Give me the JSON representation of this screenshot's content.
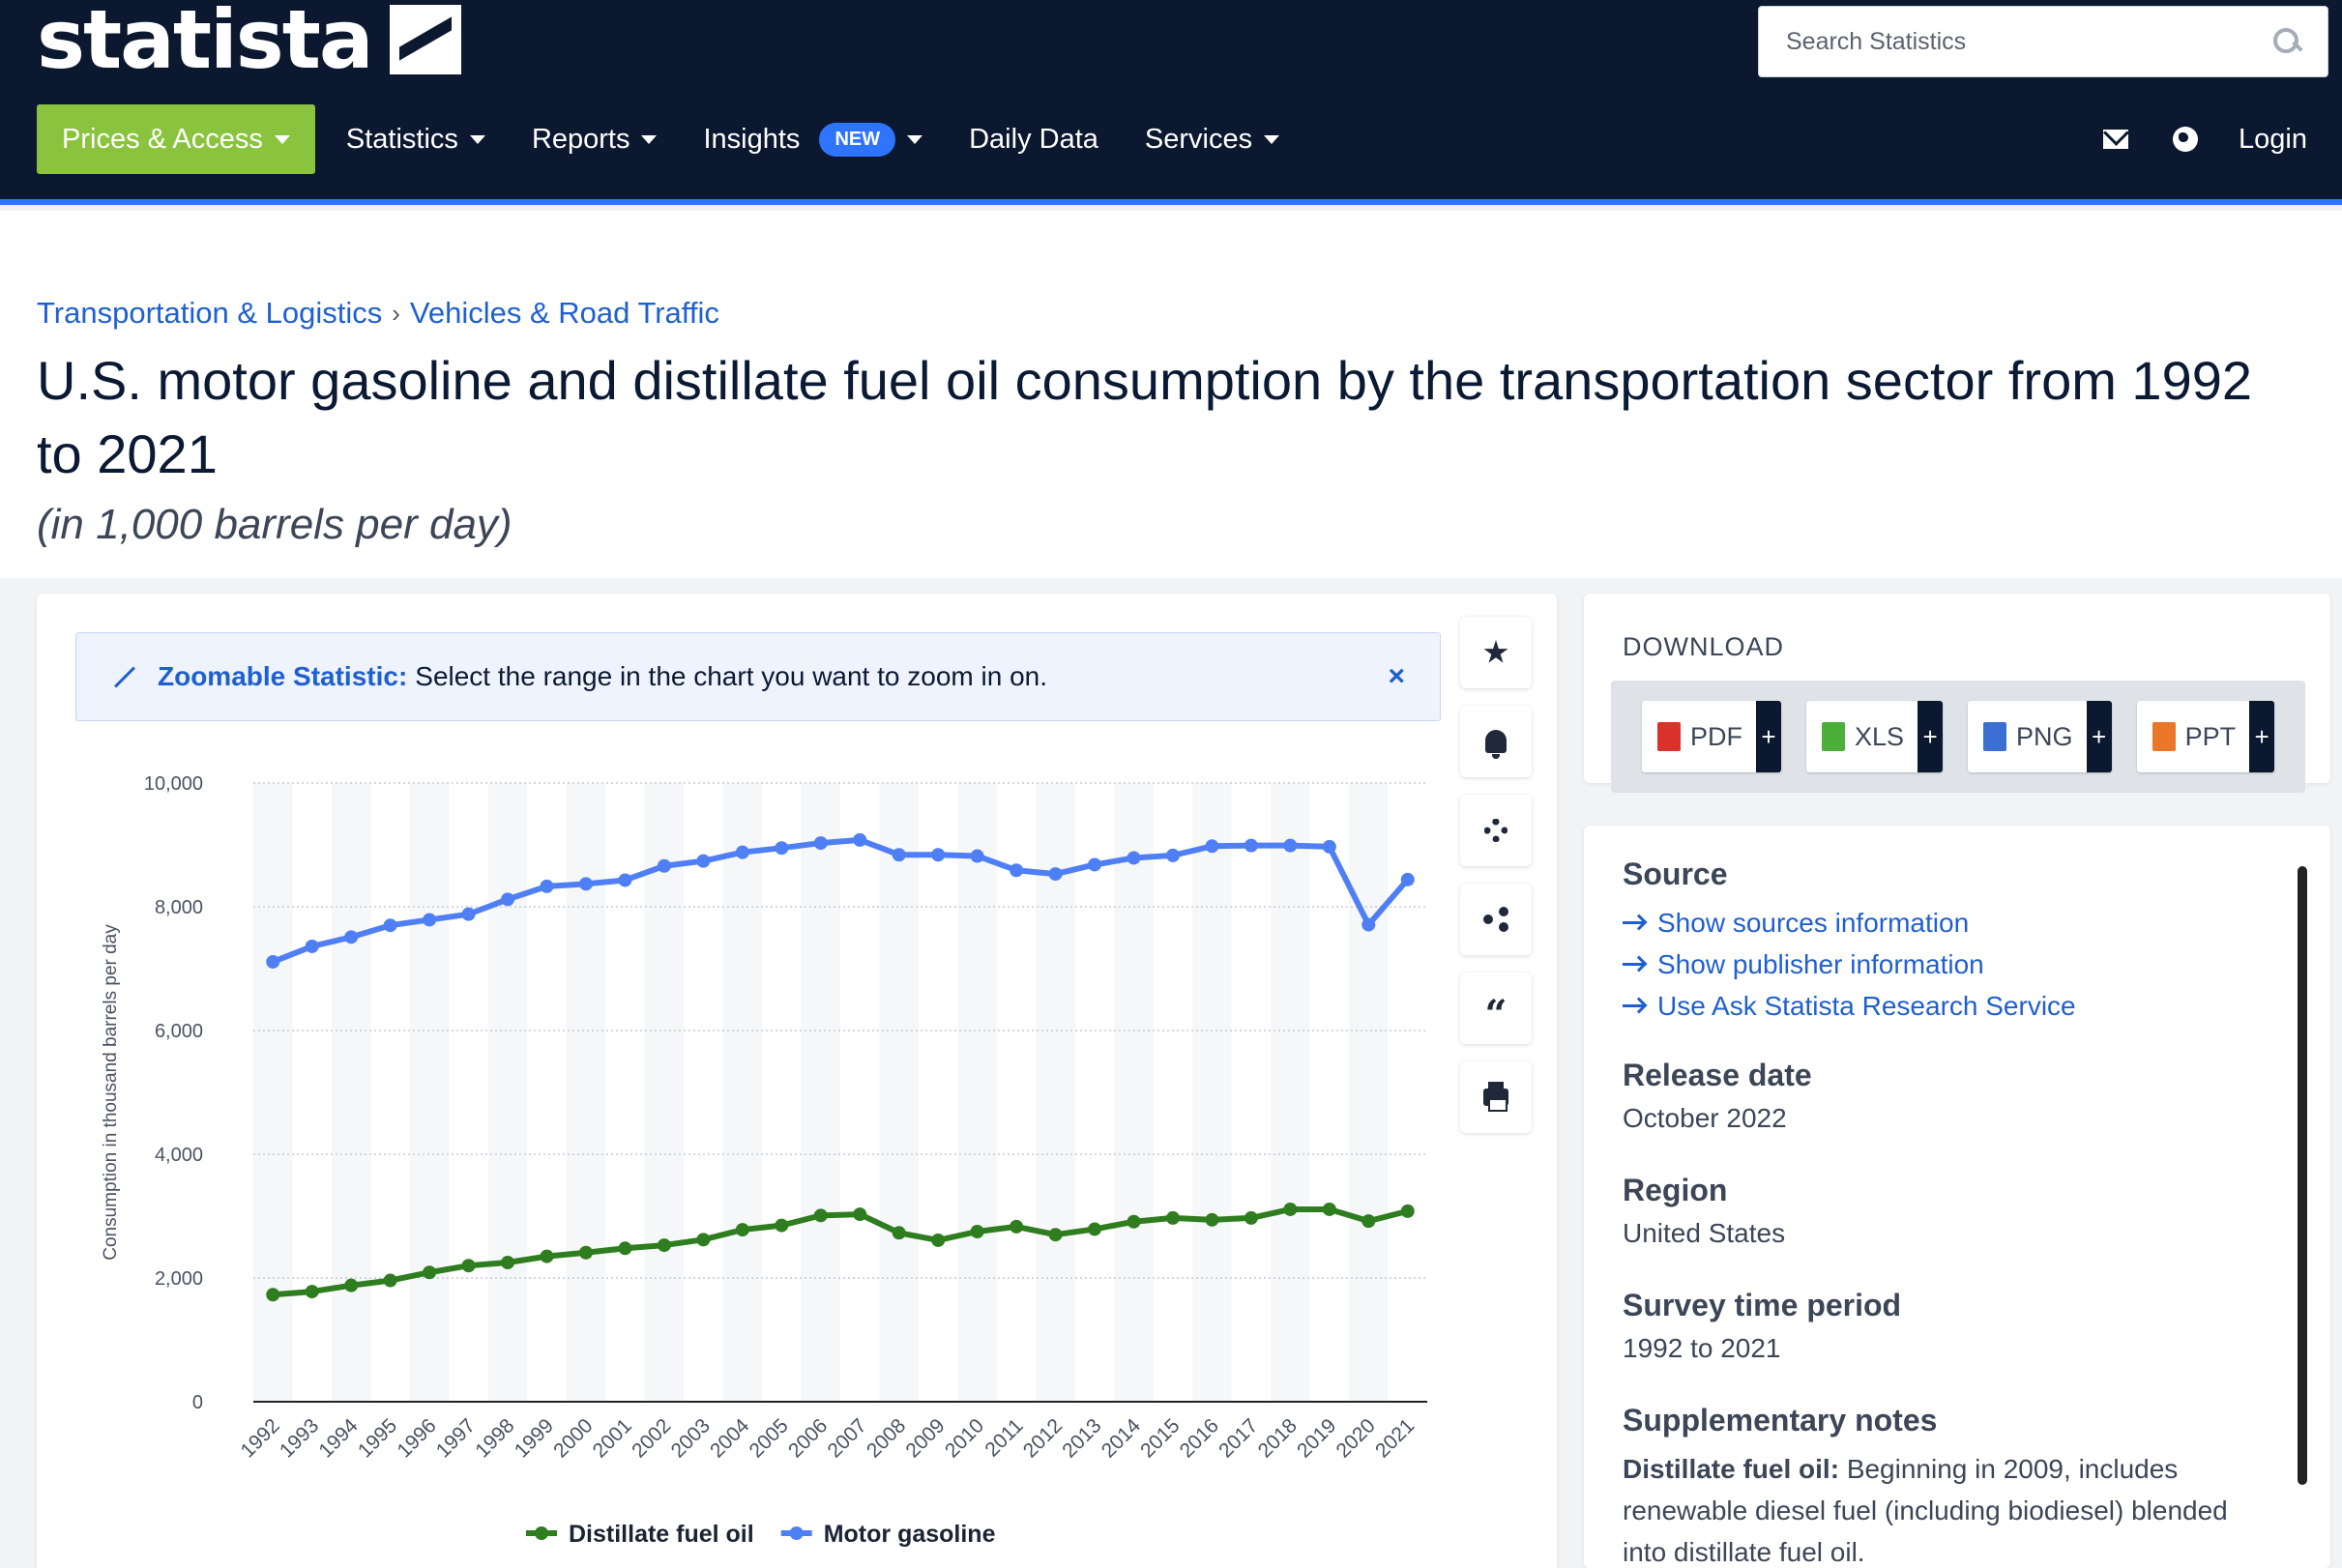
{
  "header": {
    "logo_text": "statista",
    "search_placeholder": "Search Statistics",
    "nav": [
      {
        "label": "Prices & Access"
      },
      {
        "label": "Statistics"
      },
      {
        "label": "Reports"
      },
      {
        "label": "Insights",
        "badge": "NEW"
      },
      {
        "label": "Daily Data"
      },
      {
        "label": "Services"
      }
    ],
    "login_label": "Login"
  },
  "breadcrumb": [
    "Transportation & Logistics",
    "Vehicles & Road Traffic"
  ],
  "page": {
    "title": "U.S. motor gasoline and distillate fuel oil consumption by the transportation sector from 1992 to 2021",
    "subtitle": "(in 1,000 barrels per day)"
  },
  "zoom_banner": {
    "lead": "Zoomable Statistic:",
    "text": "Select the range in the chart you want to zoom in on.",
    "close": "×"
  },
  "tools": [
    "star-icon",
    "bell-icon",
    "gear-icon",
    "share-icon",
    "quote-icon",
    "print-icon"
  ],
  "download": {
    "title": "DOWNLOAD",
    "buttons": [
      {
        "label": "PDF",
        "color": "#d9322b"
      },
      {
        "label": "XLS",
        "color": "#4caf3a"
      },
      {
        "label": "PNG",
        "color": "#3b6fd1"
      },
      {
        "label": "PPT",
        "color": "#e8772a"
      }
    ],
    "plus": "+"
  },
  "info": {
    "source_title": "Source",
    "source_links": [
      "Show sources information",
      "Show publisher information",
      "Use Ask Statista Research Service"
    ],
    "release_title": "Release date",
    "release_value": "October 2022",
    "region_title": "Region",
    "region_value": "United States",
    "survey_title": "Survey time period",
    "survey_value": "1992 to 2021",
    "notes_title": "Supplementary notes",
    "notes_lead": "Distillate fuel oil:",
    "notes_text": "Beginning in 2009, includes renewable diesel fuel (including biodiesel) blended into distillate fuel oil."
  },
  "chart_data": {
    "type": "line",
    "ylabel": "Consumption in thousand barrels per day",
    "ylim": [
      0,
      10000
    ],
    "yticks": [
      "0",
      "2,000",
      "4,000",
      "6,000",
      "8,000",
      "10,000"
    ],
    "x": [
      "1992",
      "1993",
      "1994",
      "1995",
      "1996",
      "1997",
      "1998",
      "1999",
      "2000",
      "2001",
      "2002",
      "2003",
      "2004",
      "2005",
      "2006",
      "2007",
      "2008",
      "2009",
      "2010",
      "2011",
      "2012",
      "2013",
      "2014",
      "2015",
      "2016",
      "2017",
      "2018",
      "2019",
      "2020",
      "2021"
    ],
    "series": [
      {
        "name": "Distillate fuel oil",
        "color": "#2e7d1f",
        "values": [
          1730,
          1780,
          1880,
          1960,
          2090,
          2200,
          2250,
          2350,
          2410,
          2480,
          2530,
          2620,
          2780,
          2850,
          3010,
          3030,
          2730,
          2610,
          2750,
          2830,
          2700,
          2790,
          2910,
          2970,
          2940,
          2970,
          3110,
          3110,
          2920,
          3080
        ]
      },
      {
        "name": "Motor gasoline",
        "color": "#4f7ff5",
        "values": [
          7110,
          7360,
          7510,
          7700,
          7790,
          7880,
          8120,
          8330,
          8370,
          8430,
          8660,
          8740,
          8880,
          8950,
          9030,
          9080,
          8840,
          8840,
          8820,
          8590,
          8530,
          8680,
          8790,
          8830,
          8980,
          8990,
          8990,
          8970,
          7710,
          8440
        ]
      }
    ],
    "legend_position": "bottom-center",
    "grid": true
  }
}
